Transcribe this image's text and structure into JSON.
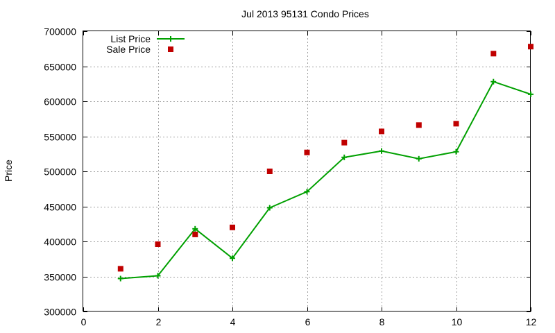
{
  "chart_data": {
    "type": "line",
    "title": "Jul 2013 95131 Condo Prices",
    "xlabel": "",
    "ylabel": "Price",
    "xlim": [
      0,
      12
    ],
    "ylim": [
      300000,
      700000
    ],
    "x_ticks": [
      0,
      2,
      4,
      6,
      8,
      10,
      12
    ],
    "y_ticks": [
      300000,
      350000,
      400000,
      450000,
      500000,
      550000,
      600000,
      650000,
      700000
    ],
    "grid": true,
    "legend_position": "top-left",
    "series": [
      {
        "name": "List Price",
        "style": "line-plus",
        "color": "#00a000",
        "x": [
          1,
          2,
          3,
          4,
          5,
          6,
          7,
          8,
          9,
          10,
          11,
          12
        ],
        "y": [
          347000,
          351000,
          418000,
          376000,
          448000,
          471000,
          520000,
          529000,
          518000,
          528000,
          628000,
          610000
        ]
      },
      {
        "name": "Sale Price",
        "style": "square-points",
        "color": "#c00000",
        "x": [
          1,
          2,
          3,
          4,
          5,
          6,
          7,
          8,
          9,
          10,
          11,
          12
        ],
        "y": [
          361000,
          396000,
          410000,
          420000,
          500000,
          527000,
          541000,
          557000,
          566000,
          568000,
          668000,
          678000
        ]
      }
    ]
  }
}
